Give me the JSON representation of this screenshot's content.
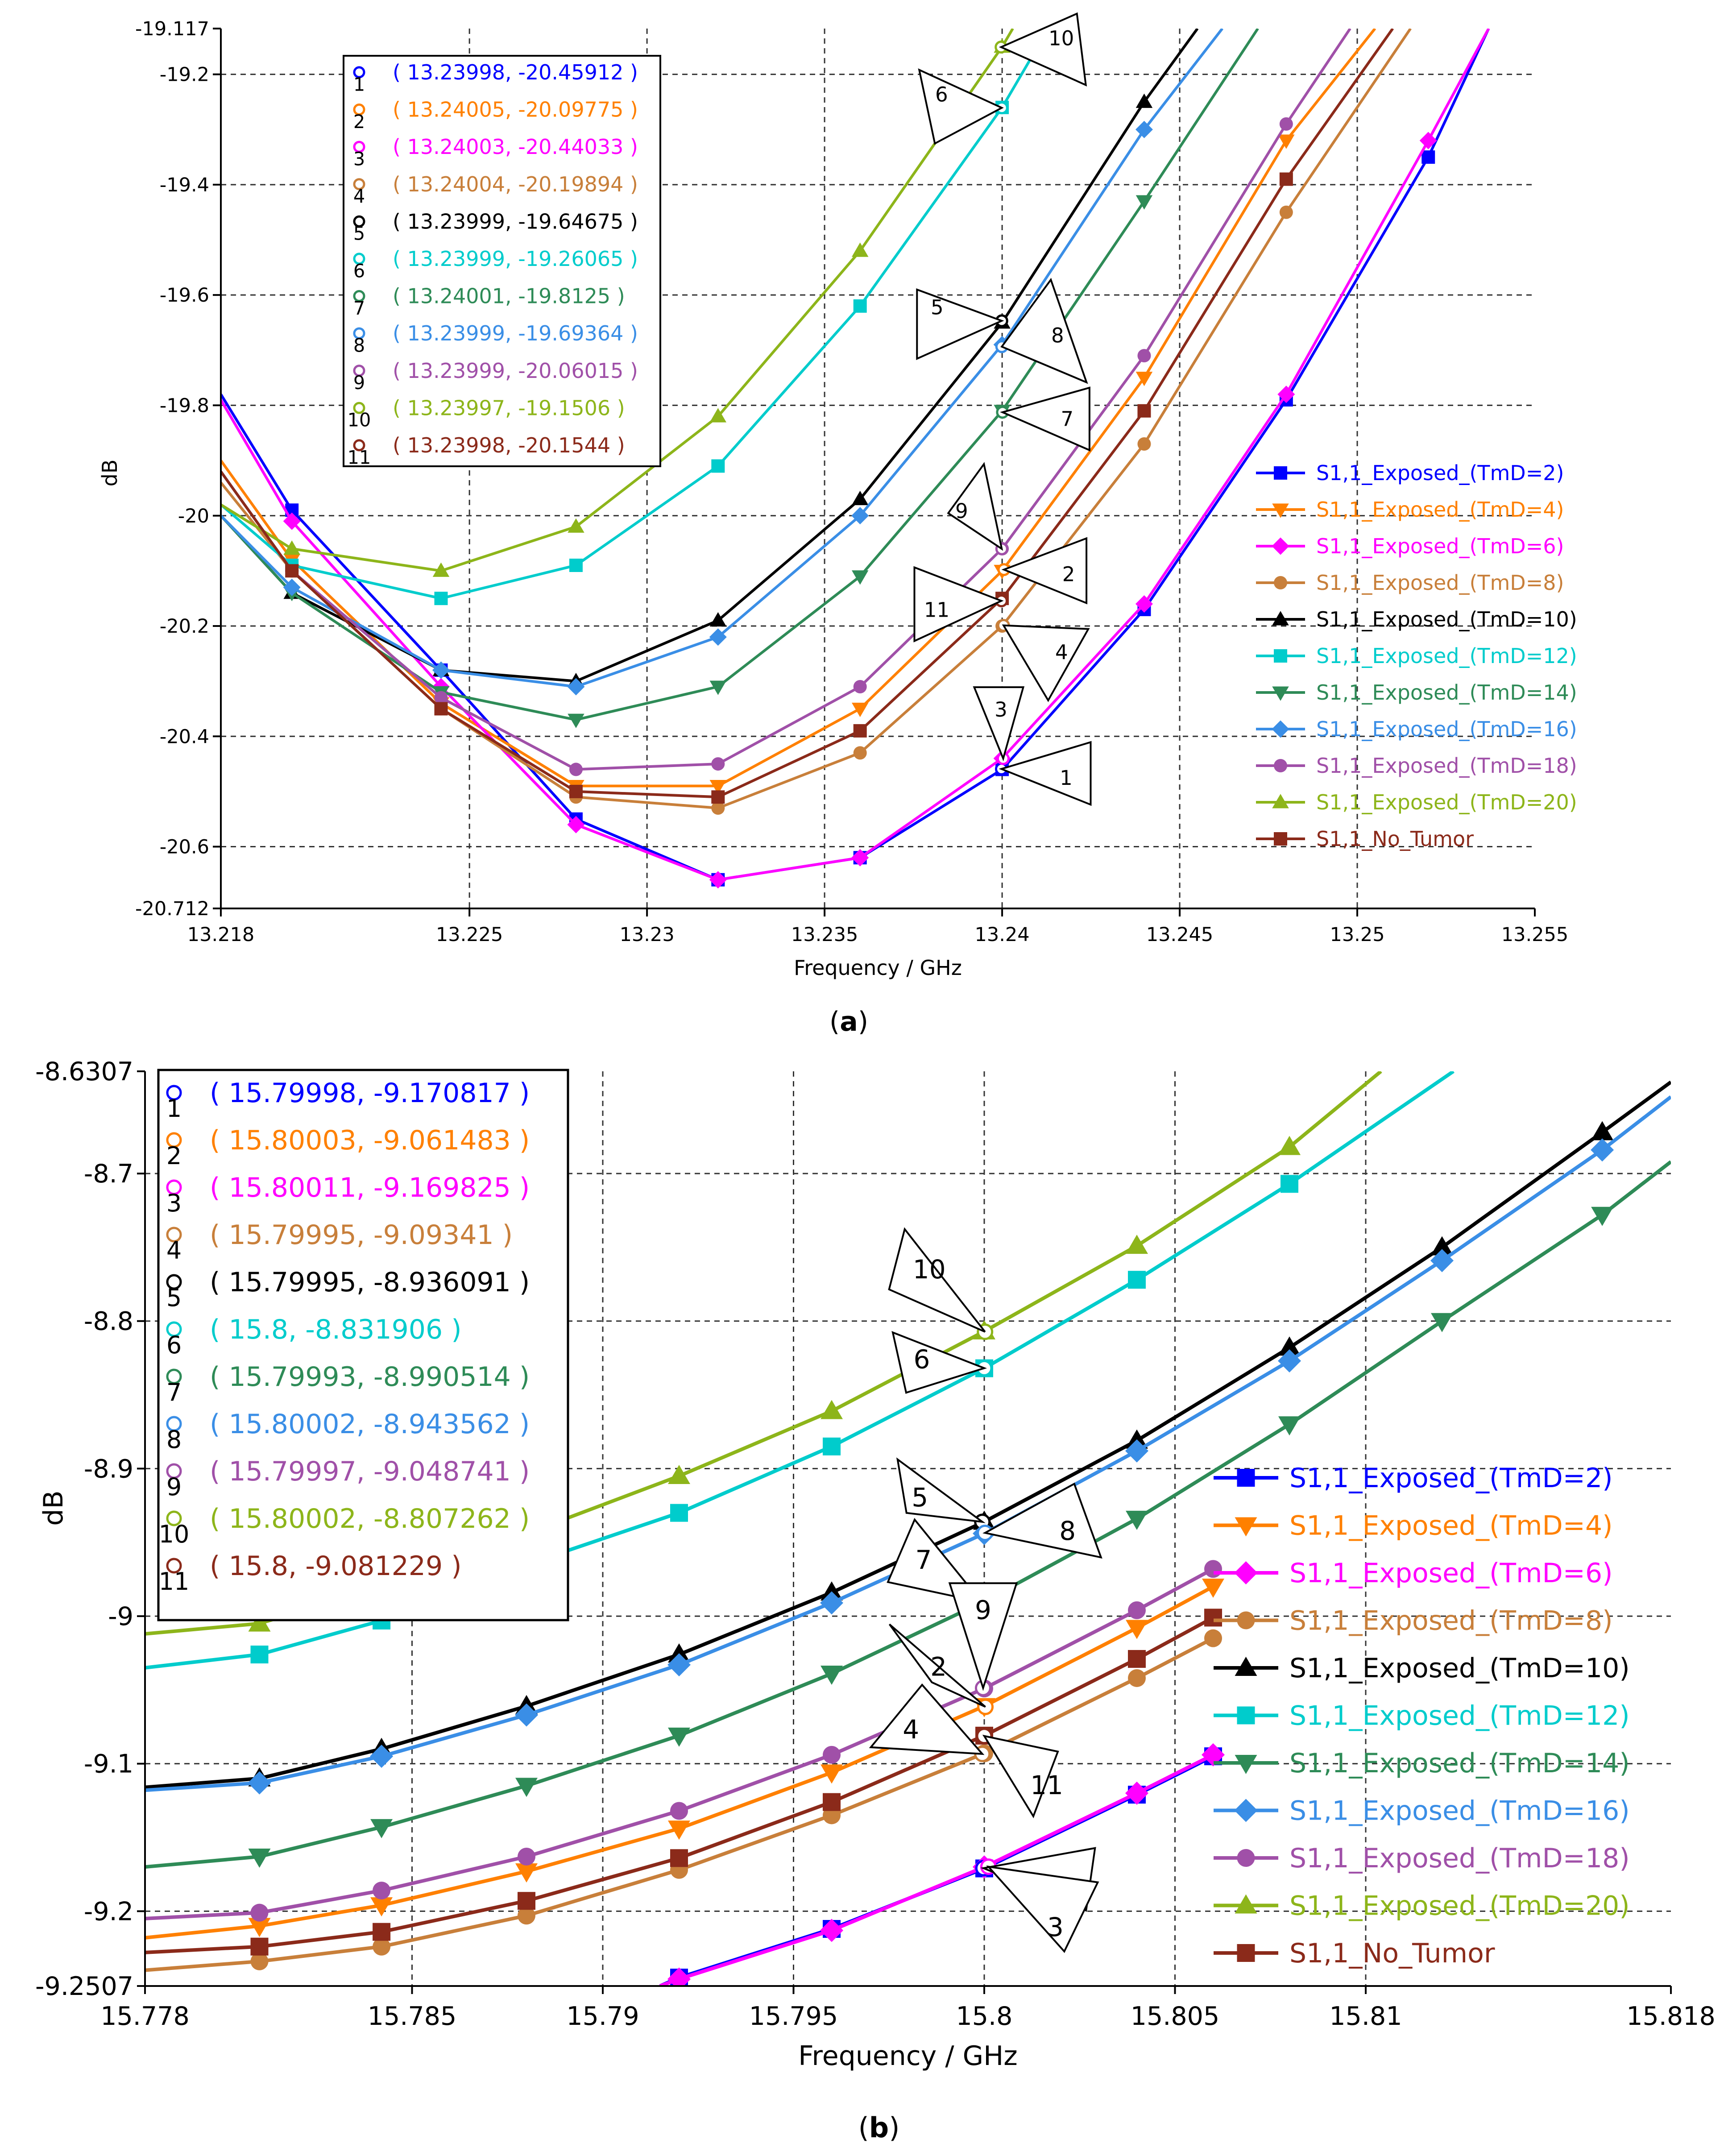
{
  "chart_data": [
    {
      "id": "a",
      "type": "line",
      "caption_letter": "a",
      "xlabel": "Frequency / GHz",
      "ylabel": "dB",
      "xlim": [
        13.218,
        13.255
      ],
      "ylim": [
        -20.712,
        -19.117
      ],
      "x_ticks": [
        13.218,
        13.225,
        13.23,
        13.235,
        13.24,
        13.245,
        13.25,
        13.255
      ],
      "x_tick_labels": [
        "13.218",
        "13.225",
        "13.23",
        "13.235",
        "13.24",
        "13.245",
        "13.25",
        "13.255"
      ],
      "y_ticks": [
        -20.712,
        -20.6,
        -20.4,
        -20.2,
        -20,
        -19.8,
        -19.6,
        -19.4,
        -19.2,
        -19.117
      ],
      "y_tick_labels": [
        "-20.712",
        "-20.6",
        "-20.4",
        "-20.2",
        "-20",
        "-19.8",
        "-19.6",
        "-19.4",
        "-19.2",
        "-19.117"
      ],
      "grid": true,
      "legend_position": "right",
      "marker_table_position": "top-left",
      "series": [
        {
          "name": "S1,1_Exposed_(TmD=2)",
          "color": "#0000ff",
          "marker": "square",
          "x": [
            13.218,
            13.22,
            13.2242,
            13.228,
            13.232,
            13.236,
            13.24,
            13.244,
            13.248,
            13.252,
            13.2537
          ],
          "y": [
            -19.78,
            -19.99,
            -20.28,
            -20.55,
            -20.66,
            -20.62,
            -20.46,
            -20.17,
            -19.79,
            -19.35,
            -19.117
          ]
        },
        {
          "name": "S1,1_Exposed_(TmD=4)",
          "color": "#ff8000",
          "marker": "triangle-down",
          "x": [
            13.218,
            13.22,
            13.2242,
            13.228,
            13.232,
            13.236,
            13.24,
            13.244,
            13.248,
            13.2505
          ],
          "y": [
            -19.9,
            -20.08,
            -20.34,
            -20.49,
            -20.49,
            -20.35,
            -20.1,
            -19.75,
            -19.32,
            -19.117
          ]
        },
        {
          "name": "S1,1_Exposed_(TmD=6)",
          "color": "#ff00ff",
          "marker": "diamond",
          "x": [
            13.218,
            13.22,
            13.2242,
            13.228,
            13.232,
            13.236,
            13.24,
            13.244,
            13.248,
            13.252,
            13.2537
          ],
          "y": [
            -19.79,
            -20.01,
            -20.31,
            -20.56,
            -20.66,
            -20.62,
            -20.44,
            -20.16,
            -19.78,
            -19.32,
            -19.117
          ]
        },
        {
          "name": "S1,1_Exposed_(TmD=8)",
          "color": "#c87f3a",
          "marker": "circle",
          "x": [
            13.218,
            13.22,
            13.2242,
            13.228,
            13.232,
            13.236,
            13.24,
            13.244,
            13.248,
            13.2515
          ],
          "y": [
            -19.94,
            -20.1,
            -20.35,
            -20.51,
            -20.53,
            -20.43,
            -20.2,
            -19.87,
            -19.45,
            -19.117
          ]
        },
        {
          "name": "S1,1_Exposed_(TmD=10)",
          "color": "#000000",
          "marker": "triangle-up",
          "x": [
            13.218,
            13.22,
            13.2242,
            13.228,
            13.232,
            13.236,
            13.24,
            13.244,
            13.2455
          ],
          "y": [
            -20.0,
            -20.14,
            -20.28,
            -20.3,
            -20.19,
            -19.97,
            -19.65,
            -19.25,
            -19.117
          ]
        },
        {
          "name": "S1,1_Exposed_(TmD=12)",
          "color": "#00cccc",
          "marker": "square",
          "x": [
            13.218,
            13.22,
            13.2242,
            13.228,
            13.232,
            13.236,
            13.24,
            13.2413
          ],
          "y": [
            -19.98,
            -20.09,
            -20.15,
            -20.09,
            -19.91,
            -19.62,
            -19.26,
            -19.117
          ]
        },
        {
          "name": "S1,1_Exposed_(TmD=14)",
          "color": "#2e8b57",
          "marker": "triangle-down",
          "x": [
            13.218,
            13.22,
            13.2242,
            13.228,
            13.232,
            13.236,
            13.24,
            13.244,
            13.2472
          ],
          "y": [
            -20.0,
            -20.14,
            -20.32,
            -20.37,
            -20.31,
            -20.11,
            -19.81,
            -19.43,
            -19.117
          ]
        },
        {
          "name": "S1,1_Exposed_(TmD=16)",
          "color": "#3a8ee6",
          "marker": "diamond",
          "x": [
            13.218,
            13.22,
            13.2242,
            13.228,
            13.232,
            13.236,
            13.24,
            13.244,
            13.2462
          ],
          "y": [
            -20.0,
            -20.13,
            -20.28,
            -20.31,
            -20.22,
            -20.0,
            -19.69,
            -19.3,
            -19.117
          ]
        },
        {
          "name": "S1,1_Exposed_(TmD=18)",
          "color": "#a050a8",
          "marker": "circle",
          "x": [
            13.218,
            13.22,
            13.2242,
            13.228,
            13.232,
            13.236,
            13.24,
            13.244,
            13.248,
            13.2498
          ],
          "y": [
            -19.92,
            -20.1,
            -20.33,
            -20.46,
            -20.45,
            -20.31,
            -20.06,
            -19.71,
            -19.29,
            -19.117
          ]
        },
        {
          "name": "S1,1_Exposed_(TmD=20)",
          "color": "#8db51a",
          "marker": "triangle-up",
          "x": [
            13.218,
            13.22,
            13.2242,
            13.228,
            13.232,
            13.236,
            13.24,
            13.2403
          ],
          "y": [
            -19.98,
            -20.06,
            -20.1,
            -20.02,
            -19.82,
            -19.52,
            -19.15,
            -19.117
          ]
        },
        {
          "name": "S1,1_No_Tumor",
          "color": "#8b2a1a",
          "marker": "square",
          "x": [
            13.218,
            13.22,
            13.2242,
            13.228,
            13.232,
            13.236,
            13.24,
            13.244,
            13.248,
            13.251
          ],
          "y": [
            -19.92,
            -20.1,
            -20.35,
            -20.5,
            -20.51,
            -20.39,
            -20.15,
            -19.81,
            -19.39,
            -19.117
          ]
        }
      ],
      "markers": [
        {
          "num": "1",
          "text": "( 13.23998, -20.45912 )",
          "x": 13.23998,
          "y": -20.45912,
          "color": "#0000ff"
        },
        {
          "num": "2",
          "text": "( 13.24005, -20.09775 )",
          "x": 13.24005,
          "y": -20.09775,
          "color": "#ff8000"
        },
        {
          "num": "3",
          "text": "( 13.24003, -20.44033 )",
          "x": 13.24003,
          "y": -20.44033,
          "color": "#ff00ff"
        },
        {
          "num": "4",
          "text": "( 13.24004, -20.19894 )",
          "x": 13.24004,
          "y": -20.19894,
          "color": "#c87f3a"
        },
        {
          "num": "5",
          "text": "( 13.23999, -19.64675 )",
          "x": 13.23999,
          "y": -19.64675,
          "color": "#000000"
        },
        {
          "num": "6",
          "text": "( 13.23999, -19.26065 )",
          "x": 13.23999,
          "y": -19.26065,
          "color": "#00cccc"
        },
        {
          "num": "7",
          "text": "( 13.24001, -19.8125 )",
          "x": 13.24001,
          "y": -19.8125,
          "color": "#2e8b57"
        },
        {
          "num": "8",
          "text": "( 13.23999, -19.69364 )",
          "x": 13.23999,
          "y": -19.69364,
          "color": "#3a8ee6"
        },
        {
          "num": "9",
          "text": "( 13.23999, -20.06015 )",
          "x": 13.23999,
          "y": -20.06015,
          "color": "#a050a8"
        },
        {
          "num": "10",
          "text": "( 13.23997, -19.1506 )",
          "x": 13.23997,
          "y": -19.1506,
          "color": "#8db51a"
        },
        {
          "num": "11",
          "text": "( 13.23998, -20.1544 )",
          "x": 13.23998,
          "y": -20.1544,
          "color": "#8b2a1a"
        }
      ]
    },
    {
      "id": "b",
      "type": "line",
      "caption_letter": "b",
      "xlabel": "Frequency / GHz",
      "ylabel": "dB",
      "xlim": [
        15.778,
        15.818
      ],
      "ylim": [
        -9.2507,
        -8.6307
      ],
      "x_ticks": [
        15.778,
        15.785,
        15.79,
        15.795,
        15.8,
        15.805,
        15.81,
        15.818
      ],
      "x_tick_labels": [
        "15.778",
        "15.785",
        "15.79",
        "15.795",
        "15.8",
        "15.805",
        "15.81",
        "15.818"
      ],
      "y_ticks": [
        -9.2507,
        -9.2,
        -9.1,
        -9,
        -8.9,
        -8.8,
        -8.7,
        -8.6307
      ],
      "y_tick_labels": [
        "-9.2507",
        "-9.2",
        "-9.1",
        "-9",
        "-8.9",
        "-8.8",
        "-8.7",
        "-8.6307"
      ],
      "grid": true,
      "legend_position": "right",
      "marker_table_position": "top-left",
      "series": [
        {
          "name": "S1,1_Exposed_(TmD=2)",
          "color": "#0000ff",
          "marker": "square",
          "x": [
            15.7915,
            15.792,
            15.796,
            15.8,
            15.804,
            15.806
          ],
          "y": [
            -9.2507,
            -9.245,
            -9.212,
            -9.171,
            -9.121,
            -9.095
          ]
        },
        {
          "name": "S1,1_Exposed_(TmD=4)",
          "color": "#ff8000",
          "marker": "triangle-down",
          "x": [
            15.778,
            15.781,
            15.7842,
            15.788,
            15.792,
            15.796,
            15.8,
            15.804,
            15.806
          ],
          "y": [
            -9.218,
            -9.21,
            -9.196,
            -9.173,
            -9.144,
            -9.106,
            -9.061,
            -9.008,
            -8.98
          ]
        },
        {
          "name": "S1,1_Exposed_(TmD=6)",
          "color": "#ff00ff",
          "marker": "diamond",
          "x": [
            15.7915,
            15.792,
            15.796,
            15.8,
            15.804,
            15.806
          ],
          "y": [
            -9.2507,
            -9.246,
            -9.213,
            -9.17,
            -9.12,
            -9.094
          ]
        },
        {
          "name": "S1,1_Exposed_(TmD=8)",
          "color": "#c87f3a",
          "marker": "circle",
          "x": [
            15.778,
            15.781,
            15.7842,
            15.788,
            15.792,
            15.796,
            15.8,
            15.804,
            15.806
          ],
          "y": [
            -9.24,
            -9.234,
            -9.224,
            -9.203,
            -9.172,
            -9.135,
            -9.093,
            -9.042,
            -9.015
          ]
        },
        {
          "name": "S1,1_Exposed_(TmD=10)",
          "color": "#000000",
          "marker": "triangle-up",
          "x": [
            15.778,
            15.781,
            15.7842,
            15.788,
            15.792,
            15.796,
            15.8,
            15.804,
            15.808,
            15.812,
            15.8162,
            15.818
          ],
          "y": [
            -9.116,
            -9.11,
            -9.09,
            -9.061,
            -9.026,
            -8.984,
            -8.936,
            -8.881,
            -8.818,
            -8.75,
            -8.672,
            -8.638
          ]
        },
        {
          "name": "S1,1_Exposed_(TmD=12)",
          "color": "#00cccc",
          "marker": "square",
          "x": [
            15.778,
            15.781,
            15.7842,
            15.788,
            15.792,
            15.796,
            15.8,
            15.804,
            15.808,
            15.8123
          ],
          "y": [
            -9.035,
            -9.026,
            -9.003,
            -8.965,
            -8.93,
            -8.885,
            -8.832,
            -8.772,
            -8.707,
            -8.6307
          ]
        },
        {
          "name": "S1,1_Exposed_(TmD=14)",
          "color": "#2e8b57",
          "marker": "triangle-down",
          "x": [
            15.778,
            15.781,
            15.7842,
            15.788,
            15.792,
            15.796,
            15.8,
            15.804,
            15.808,
            15.812,
            15.8162,
            15.818
          ],
          "y": [
            -9.17,
            -9.163,
            -9.143,
            -9.115,
            -9.081,
            -9.039,
            -8.99,
            -8.934,
            -8.87,
            -8.8,
            -8.728,
            -8.692
          ]
        },
        {
          "name": "S1,1_Exposed_(TmD=16)",
          "color": "#3a8ee6",
          "marker": "diamond",
          "x": [
            15.778,
            15.781,
            15.7842,
            15.788,
            15.792,
            15.796,
            15.8,
            15.804,
            15.808,
            15.812,
            15.8162,
            15.818
          ],
          "y": [
            -9.118,
            -9.113,
            -9.095,
            -9.067,
            -9.033,
            -8.991,
            -8.944,
            -8.888,
            -8.827,
            -8.759,
            -8.684,
            -8.648
          ]
        },
        {
          "name": "S1,1_Exposed_(TmD=18)",
          "color": "#a050a8",
          "marker": "circle",
          "x": [
            15.778,
            15.781,
            15.7842,
            15.788,
            15.792,
            15.796,
            15.8,
            15.804,
            15.806
          ],
          "y": [
            -9.205,
            -9.201,
            -9.186,
            -9.163,
            -9.132,
            -9.094,
            -9.049,
            -8.996,
            -8.968
          ]
        },
        {
          "name": "S1,1_Exposed_(TmD=20)",
          "color": "#8db51a",
          "marker": "triangle-up",
          "x": [
            15.778,
            15.781,
            15.7842,
            15.788,
            15.792,
            15.796,
            15.8,
            15.804,
            15.808,
            15.8104
          ],
          "y": [
            -9.012,
            -9.005,
            -8.98,
            -8.944,
            -8.905,
            -8.861,
            -8.807,
            -8.749,
            -8.682,
            -8.6307
          ]
        },
        {
          "name": "S1,1_No_Tumor",
          "color": "#8b2a1a",
          "marker": "square",
          "x": [
            15.778,
            15.781,
            15.7842,
            15.788,
            15.792,
            15.796,
            15.8,
            15.804,
            15.806
          ],
          "y": [
            -9.228,
            -9.224,
            -9.214,
            -9.193,
            -9.164,
            -9.126,
            -9.081,
            -9.029,
            -9.001
          ]
        }
      ],
      "markers": [
        {
          "num": "1",
          "text": "( 15.79998, -9.170817 )",
          "x": 15.79998,
          "y": -9.170817,
          "color": "#0000ff"
        },
        {
          "num": "2",
          "text": "( 15.80003, -9.061483 )",
          "x": 15.80003,
          "y": -9.061483,
          "color": "#ff8000"
        },
        {
          "num": "3",
          "text": "( 15.80011, -9.169825 )",
          "x": 15.80011,
          "y": -9.169825,
          "color": "#ff00ff"
        },
        {
          "num": "4",
          "text": "( 15.79995, -9.09341 )",
          "x": 15.79995,
          "y": -9.09341,
          "color": "#c87f3a"
        },
        {
          "num": "5",
          "text": "( 15.79995, -8.936091 )",
          "x": 15.79995,
          "y": -8.936091,
          "color": "#000000"
        },
        {
          "num": "6",
          "text": "( 15.8, -8.831906 )",
          "x": 15.8,
          "y": -8.831906,
          "color": "#00cccc"
        },
        {
          "num": "7",
          "text": "( 15.79993, -8.990514 )",
          "x": 15.79993,
          "y": -8.990514,
          "color": "#2e8b57"
        },
        {
          "num": "8",
          "text": "( 15.80002, -8.943562 )",
          "x": 15.80002,
          "y": -8.943562,
          "color": "#3a8ee6"
        },
        {
          "num": "9",
          "text": "( 15.79997, -9.048741 )",
          "x": 15.79997,
          "y": -9.048741,
          "color": "#a050a8"
        },
        {
          "num": "10",
          "text": "( 15.80002, -8.807262 )",
          "x": 15.80002,
          "y": -8.807262,
          "color": "#8db51a"
        },
        {
          "num": "11",
          "text": "( 15.8, -9.081229 )",
          "x": 15.8,
          "y": -9.081229,
          "color": "#8b2a1a"
        }
      ]
    }
  ]
}
